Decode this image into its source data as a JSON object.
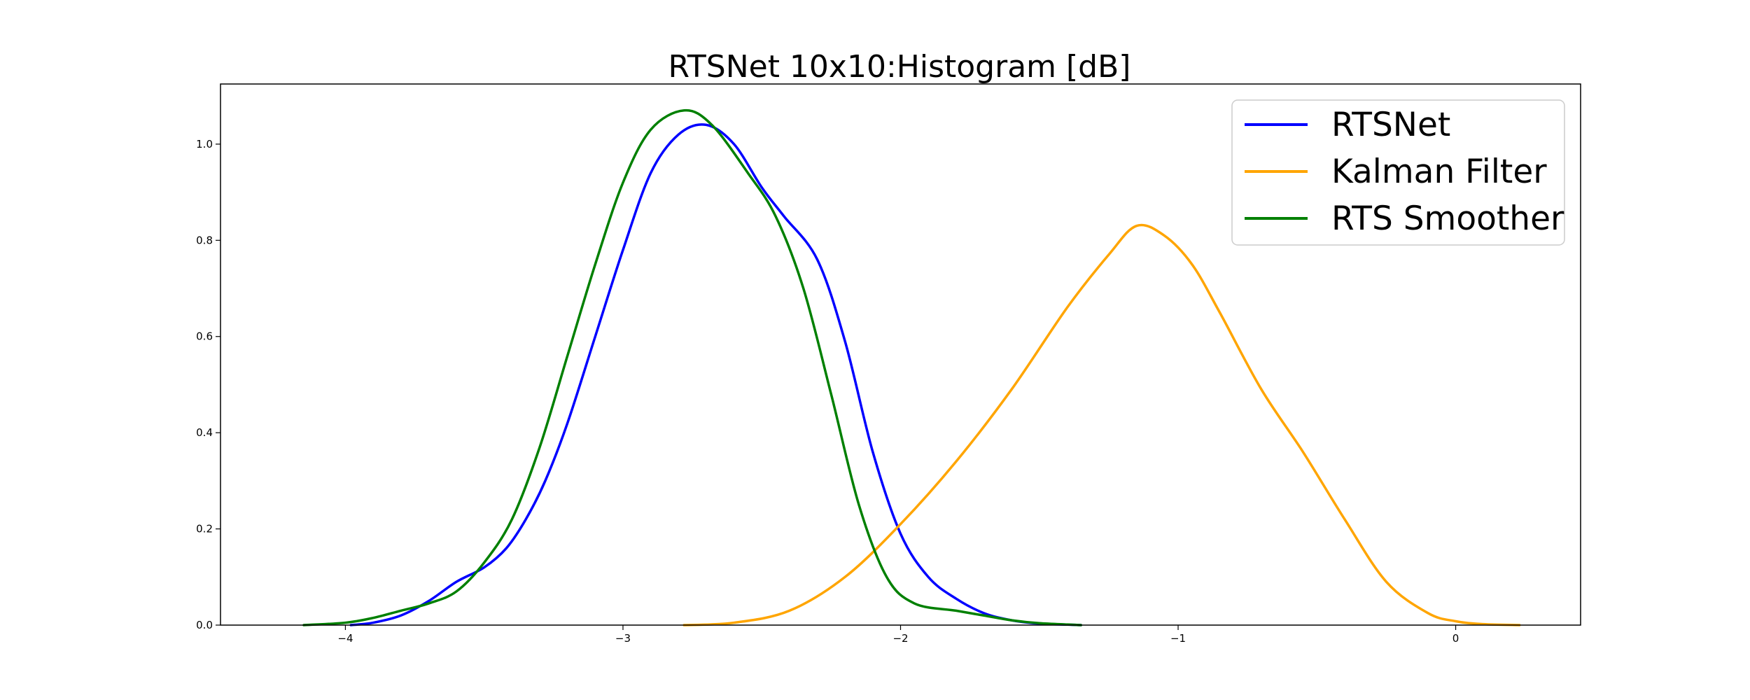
{
  "chart_data": {
    "type": "line",
    "title": "RTSNet 10x10:Histogram [dB]",
    "xlabel": "",
    "ylabel": "",
    "xlim": [
      -4.45,
      0.45
    ],
    "ylim": [
      0,
      1.125
    ],
    "xticks": [
      -4,
      -3,
      -2,
      -1,
      0
    ],
    "xtick_labels": [
      "−4",
      "−3",
      "−2",
      "−1",
      "0"
    ],
    "yticks": [
      0.0,
      0.2,
      0.4,
      0.6,
      0.8,
      1.0
    ],
    "ytick_labels": [
      "0.0",
      "0.2",
      "0.4",
      "0.6",
      "0.8",
      "1.0"
    ],
    "grid": false,
    "legend_position": "top-right",
    "series": [
      {
        "name": "RTSNet",
        "color": "#0000ff",
        "points": [
          [
            -3.98,
            0.0
          ],
          [
            -3.9,
            0.005
          ],
          [
            -3.8,
            0.02
          ],
          [
            -3.7,
            0.05
          ],
          [
            -3.6,
            0.09
          ],
          [
            -3.5,
            0.12
          ],
          [
            -3.42,
            0.16
          ],
          [
            -3.35,
            0.22
          ],
          [
            -3.28,
            0.3
          ],
          [
            -3.2,
            0.42
          ],
          [
            -3.1,
            0.6
          ],
          [
            -3.0,
            0.78
          ],
          [
            -2.9,
            0.94
          ],
          [
            -2.8,
            1.02
          ],
          [
            -2.7,
            1.04
          ],
          [
            -2.6,
            1.0
          ],
          [
            -2.5,
            0.91
          ],
          [
            -2.42,
            0.85
          ],
          [
            -2.3,
            0.76
          ],
          [
            -2.2,
            0.59
          ],
          [
            -2.1,
            0.36
          ],
          [
            -2.0,
            0.19
          ],
          [
            -1.9,
            0.1
          ],
          [
            -1.8,
            0.055
          ],
          [
            -1.7,
            0.025
          ],
          [
            -1.6,
            0.01
          ],
          [
            -1.5,
            0.003
          ],
          [
            -1.4,
            0.001
          ],
          [
            -1.35,
            0.0
          ]
        ]
      },
      {
        "name": "Kalman Filter",
        "color": "#ffa500",
        "points": [
          [
            -2.78,
            0.0
          ],
          [
            -2.6,
            0.005
          ],
          [
            -2.4,
            0.03
          ],
          [
            -2.2,
            0.1
          ],
          [
            -2.0,
            0.21
          ],
          [
            -1.8,
            0.34
          ],
          [
            -1.6,
            0.49
          ],
          [
            -1.4,
            0.66
          ],
          [
            -1.25,
            0.77
          ],
          [
            -1.15,
            0.83
          ],
          [
            -1.05,
            0.81
          ],
          [
            -0.95,
            0.75
          ],
          [
            -0.85,
            0.65
          ],
          [
            -0.7,
            0.49
          ],
          [
            -0.55,
            0.36
          ],
          [
            -0.4,
            0.22
          ],
          [
            -0.25,
            0.09
          ],
          [
            -0.1,
            0.025
          ],
          [
            0.0,
            0.008
          ],
          [
            0.1,
            0.002
          ],
          [
            0.23,
            0.0
          ]
        ]
      },
      {
        "name": "RTS Smoother",
        "color": "#008000",
        "points": [
          [
            -4.15,
            0.0
          ],
          [
            -4.0,
            0.005
          ],
          [
            -3.9,
            0.015
          ],
          [
            -3.8,
            0.03
          ],
          [
            -3.7,
            0.045
          ],
          [
            -3.6,
            0.07
          ],
          [
            -3.5,
            0.13
          ],
          [
            -3.4,
            0.22
          ],
          [
            -3.3,
            0.37
          ],
          [
            -3.2,
            0.56
          ],
          [
            -3.1,
            0.75
          ],
          [
            -3.0,
            0.92
          ],
          [
            -2.9,
            1.03
          ],
          [
            -2.78,
            1.07
          ],
          [
            -2.68,
            1.04
          ],
          [
            -2.55,
            0.94
          ],
          [
            -2.45,
            0.85
          ],
          [
            -2.35,
            0.7
          ],
          [
            -2.25,
            0.48
          ],
          [
            -2.15,
            0.25
          ],
          [
            -2.05,
            0.1
          ],
          [
            -1.95,
            0.045
          ],
          [
            -1.8,
            0.03
          ],
          [
            -1.7,
            0.02
          ],
          [
            -1.6,
            0.01
          ],
          [
            -1.5,
            0.004
          ],
          [
            -1.35,
            0.0
          ]
        ]
      }
    ]
  }
}
